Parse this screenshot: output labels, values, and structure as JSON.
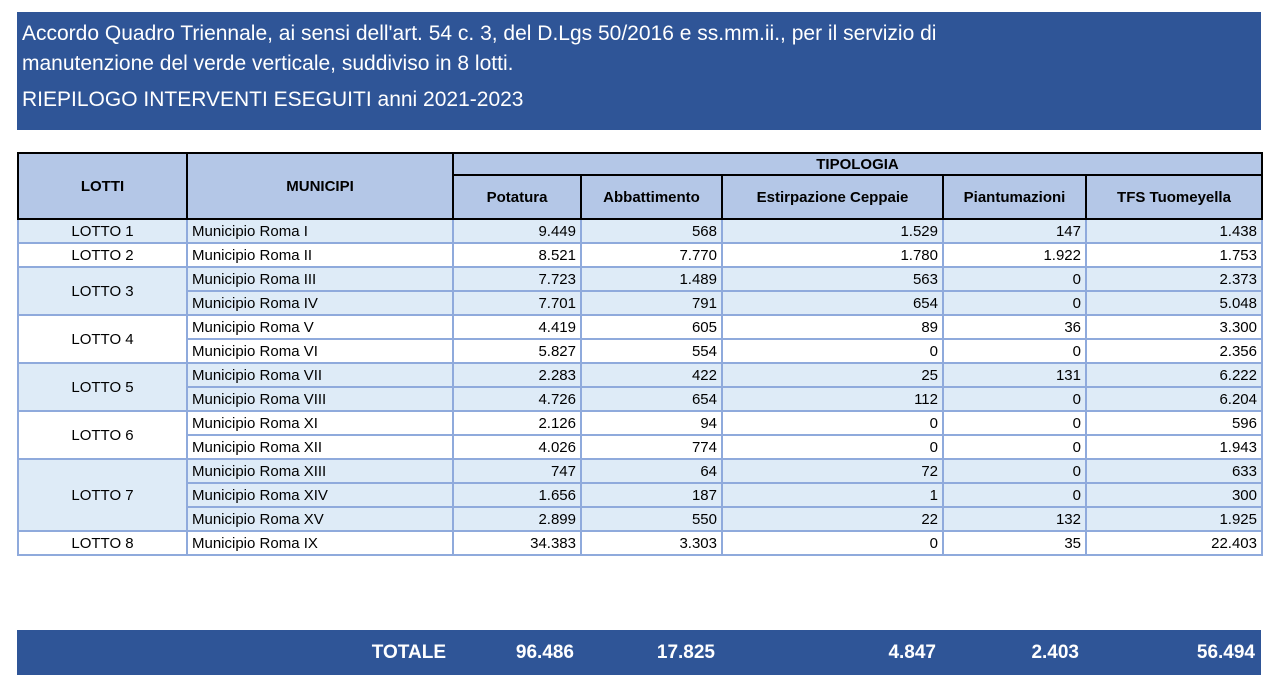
{
  "header": {
    "title_line1": "Accordo Quadro Triennale, ai sensi dell'art. 54 c. 3, del D.Lgs 50/2016 e ss.mm.ii., per il servizio di",
    "title_line2": "manutenzione del verde verticale, suddiviso in 8 lotti.",
    "subtitle": "RIEPILOGO INTERVENTI ESEGUITI anni 2021-2023"
  },
  "table": {
    "col_lotti": "LOTTI",
    "col_municipi": "MUNICIPI",
    "group_label": "TIPOLOGIA",
    "columns": [
      "Potatura",
      "Abbattimento",
      "Estirpazione Ceppaie",
      "Piantumazioni",
      "TFS Tuomeyella"
    ],
    "lots": [
      {
        "label": "LOTTO 1",
        "rows": [
          {
            "municipio": "Municipio Roma I",
            "values": [
              "9.449",
              "568",
              "1.529",
              "147",
              "1.438"
            ]
          }
        ]
      },
      {
        "label": "LOTTO 2",
        "rows": [
          {
            "municipio": "Municipio Roma II",
            "values": [
              "8.521",
              "7.770",
              "1.780",
              "1.922",
              "1.753"
            ]
          }
        ]
      },
      {
        "label": "LOTTO 3",
        "rows": [
          {
            "municipio": "Municipio Roma III",
            "values": [
              "7.723",
              "1.489",
              "563",
              "0",
              "2.373"
            ]
          },
          {
            "municipio": "Municipio Roma IV",
            "values": [
              "7.701",
              "791",
              "654",
              "0",
              "5.048"
            ]
          }
        ]
      },
      {
        "label": "LOTTO 4",
        "rows": [
          {
            "municipio": "Municipio Roma V",
            "values": [
              "4.419",
              "605",
              "89",
              "36",
              "3.300"
            ]
          },
          {
            "municipio": "Municipio Roma VI",
            "values": [
              "5.827",
              "554",
              "0",
              "0",
              "2.356"
            ]
          }
        ]
      },
      {
        "label": "LOTTO 5",
        "rows": [
          {
            "municipio": "Municipio Roma VII",
            "values": [
              "2.283",
              "422",
              "25",
              "131",
              "6.222"
            ]
          },
          {
            "municipio": "Municipio Roma VIII",
            "values": [
              "4.726",
              "654",
              "112",
              "0",
              "6.204"
            ]
          }
        ]
      },
      {
        "label": "LOTTO 6",
        "rows": [
          {
            "municipio": "Municipio Roma XI",
            "values": [
              "2.126",
              "94",
              "0",
              "0",
              "596"
            ]
          },
          {
            "municipio": "Municipio Roma XII",
            "values": [
              "4.026",
              "774",
              "0",
              "0",
              "1.943"
            ]
          }
        ]
      },
      {
        "label": "LOTTO 7",
        "rows": [
          {
            "municipio": "Municipio Roma XIII",
            "values": [
              "747",
              "64",
              "72",
              "0",
              "633"
            ]
          },
          {
            "municipio": "Municipio Roma XIV",
            "values": [
              "1.656",
              "187",
              "1",
              "0",
              "300"
            ]
          },
          {
            "municipio": "Municipio Roma XV",
            "values": [
              "2.899",
              "550",
              "22",
              "132",
              "1.925"
            ]
          }
        ]
      },
      {
        "label": "LOTTO 8",
        "rows": [
          {
            "municipio": "Municipio Roma IX",
            "values": [
              "34.383",
              "3.303",
              "0",
              "35",
              "22.403"
            ]
          }
        ]
      }
    ]
  },
  "total": {
    "label": "TOTALE",
    "values": [
      "96.486",
      "17.825",
      "4.847",
      "2.403",
      "56.494"
    ]
  }
}
